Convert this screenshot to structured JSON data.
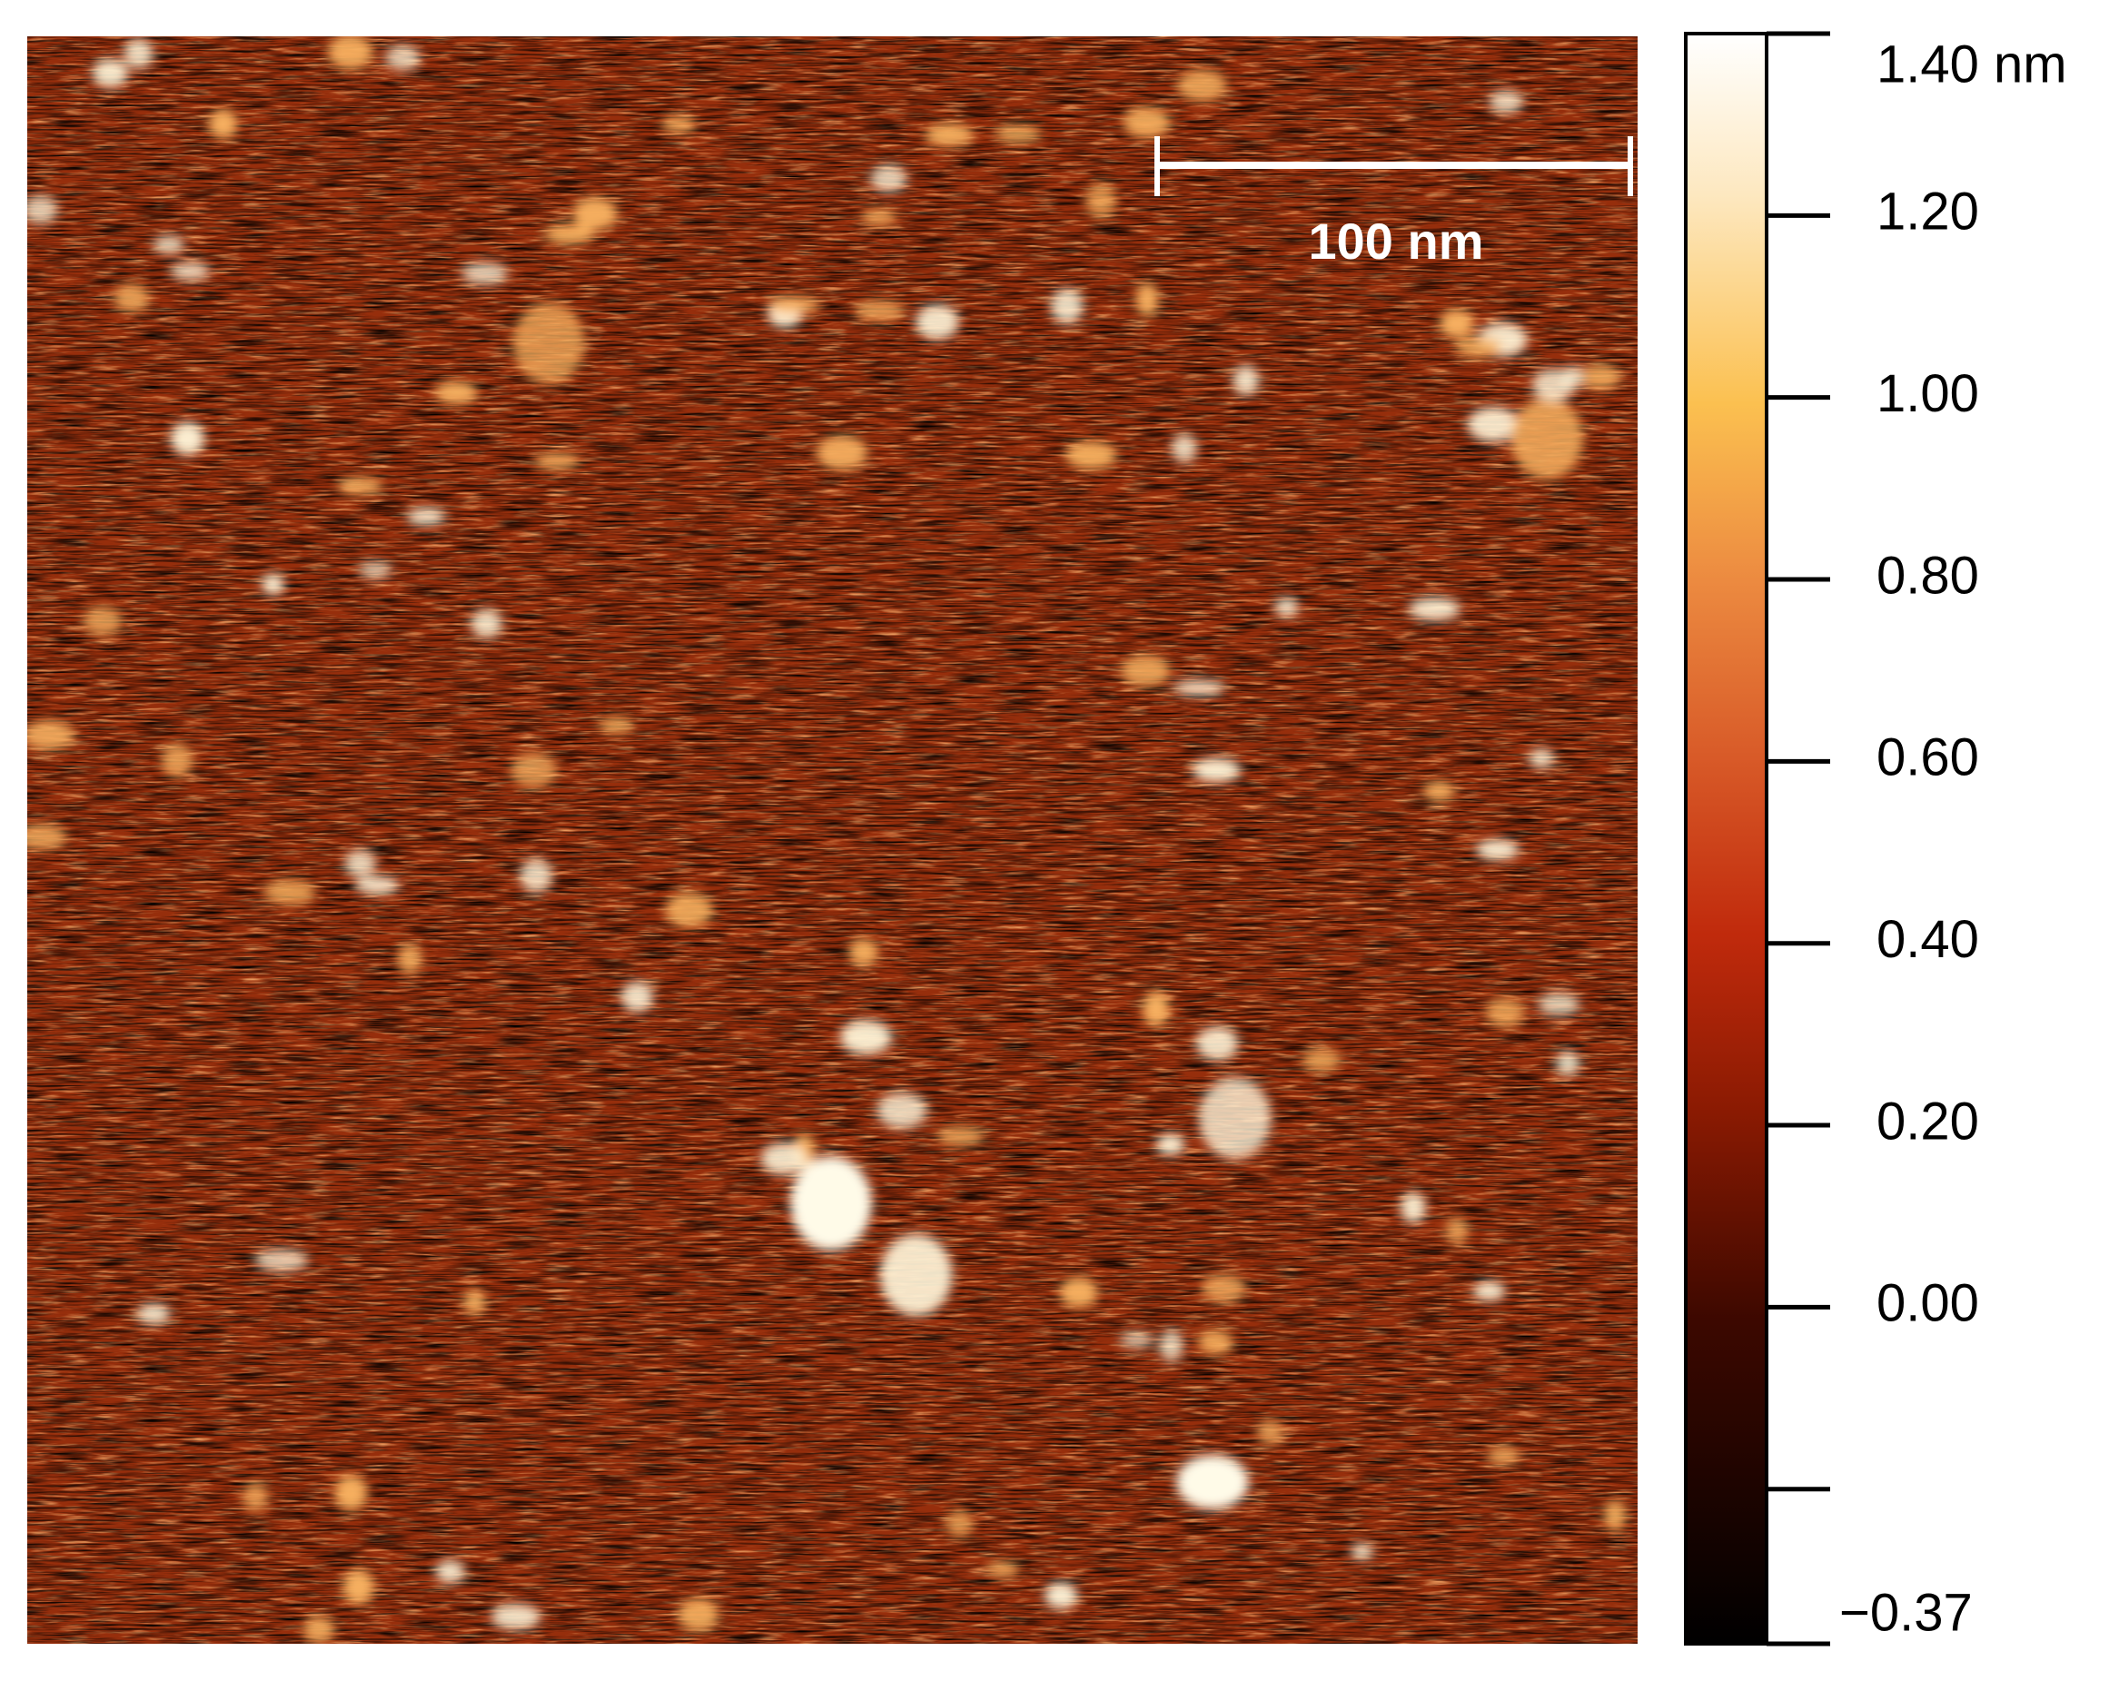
{
  "scale_bar": {
    "label": "100 nm"
  },
  "colorbar": {
    "ylim": [
      -0.37,
      1.4
    ],
    "yticks": [
      {
        "value": 1.4,
        "label": "1.40 nm"
      },
      {
        "value": 1.2,
        "label": "1.20"
      },
      {
        "value": 1.0,
        "label": "1.00"
      },
      {
        "value": 0.8,
        "label": "0.80"
      },
      {
        "value": 0.6,
        "label": "0.60"
      },
      {
        "value": 0.4,
        "label": "0.40"
      },
      {
        "value": 0.2,
        "label": "0.20"
      },
      {
        "value": 0,
        "label": "0.00"
      },
      {
        "value": -0.2,
        "label": null
      },
      {
        "value": -0.37,
        "label": "−0.37"
      }
    ]
  }
}
